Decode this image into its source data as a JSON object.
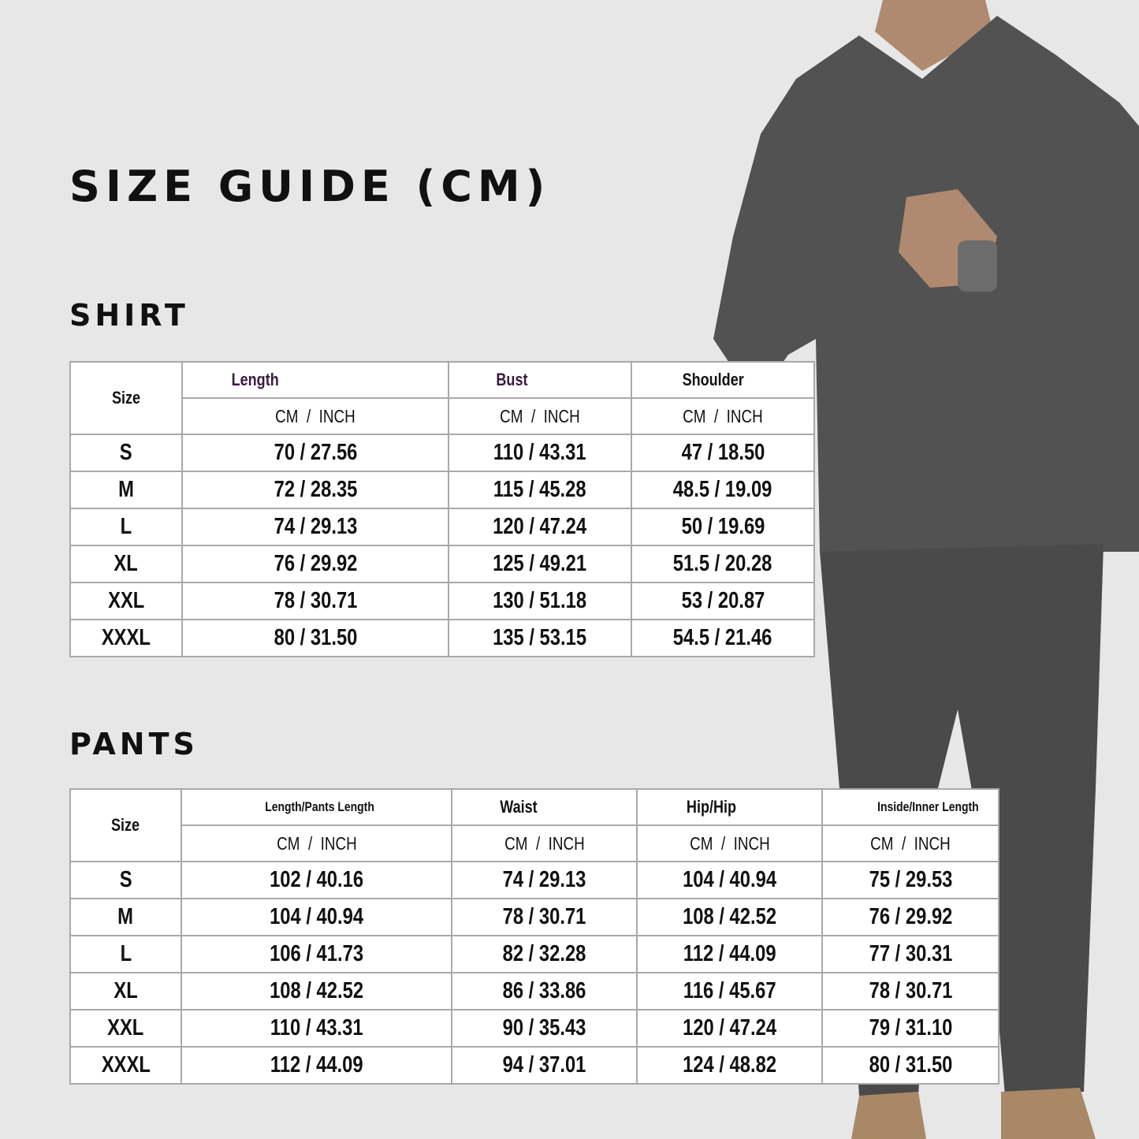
{
  "title": "SIZE GUIDE (CM)",
  "shirt": {
    "heading": "SHIRT",
    "size_label": "Size",
    "columns": [
      "Length",
      "Bust",
      "Shoulder"
    ],
    "unit_label": "CM  /  INCH",
    "rows": [
      {
        "size": "S",
        "values": [
          "70 / 27.56",
          "110 / 43.31",
          "47 / 18.50"
        ]
      },
      {
        "size": "M",
        "values": [
          "72 / 28.35",
          "115 / 45.28",
          "48.5 / 19.09"
        ]
      },
      {
        "size": "L",
        "values": [
          "74 / 29.13",
          "120 / 47.24",
          "50 / 19.69"
        ]
      },
      {
        "size": "XL",
        "values": [
          "76 / 29.92",
          "125 / 49.21",
          "51.5 / 20.28"
        ]
      },
      {
        "size": "XXL",
        "values": [
          "78 / 30.71",
          "130 / 51.18",
          "53 / 20.87"
        ]
      },
      {
        "size": "XXXL",
        "values": [
          "80 / 31.50",
          "135 / 53.15",
          "54.5 / 21.46"
        ]
      }
    ]
  },
  "pants": {
    "heading": "PANTS",
    "size_label": "Size",
    "columns": [
      "Length/Pants Length",
      "Waist",
      "Hip/Hip",
      "Inside/Inner Length"
    ],
    "unit_label": "CM  /  INCH",
    "rows": [
      {
        "size": "S",
        "values": [
          "102 / 40.16",
          "74 / 29.13",
          "104 / 40.94",
          "75 / 29.53"
        ]
      },
      {
        "size": "M",
        "values": [
          "104 / 40.94",
          "78 / 30.71",
          "108 / 42.52",
          "76 / 29.92"
        ]
      },
      {
        "size": "L",
        "values": [
          "106 / 41.73",
          "82 / 32.28",
          "112 / 44.09",
          "77 / 30.31"
        ]
      },
      {
        "size": "XL",
        "values": [
          "108 / 42.52",
          "86 / 33.86",
          "116 / 45.67",
          "78 / 30.71"
        ]
      },
      {
        "size": "XXL",
        "values": [
          "110 / 43.31",
          "90 / 35.43",
          "120 / 47.24",
          "79 / 31.10"
        ]
      },
      {
        "size": "XXXL",
        "values": [
          "112 / 44.09",
          "94 / 37.01",
          "124 / 48.82",
          "80 / 31.50"
        ]
      }
    ]
  },
  "colors": {
    "background": "#e7e7e7",
    "garment": "#4e4e4e",
    "text": "#111111"
  }
}
